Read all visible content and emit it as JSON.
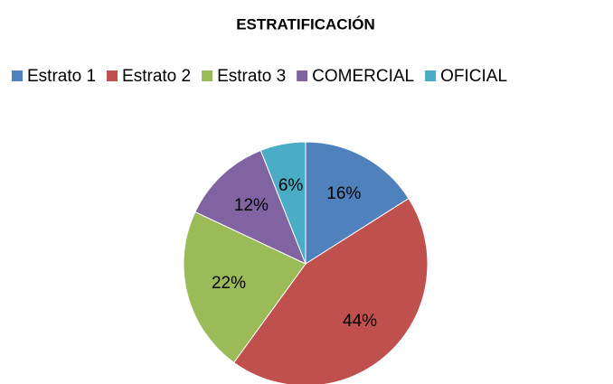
{
  "chart_data": {
    "type": "pie",
    "title": "ESTRATIFICACIÓN",
    "categories": [
      "Estrato 1",
      "Estrato 2",
      "Estrato 3",
      "COMERCIAL",
      "OFICIAL"
    ],
    "values": [
      16,
      44,
      22,
      12,
      6
    ],
    "value_labels": [
      "16%",
      "44%",
      "22%",
      "12%",
      "6%"
    ],
    "colors": [
      "#4f81bd",
      "#c0504d",
      "#9bbb59",
      "#8064a2",
      "#4bacc6"
    ],
    "legend": "top"
  }
}
